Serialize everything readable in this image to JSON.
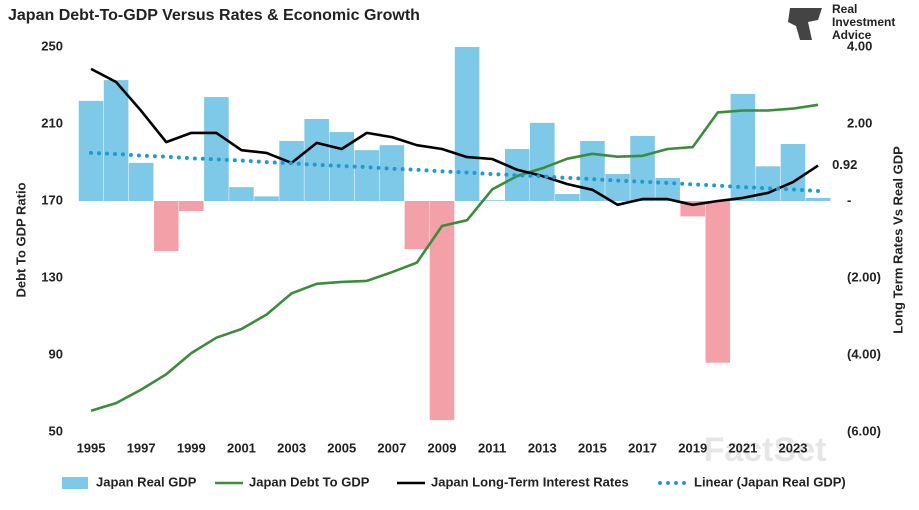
{
  "chart_data": {
    "type": "combo",
    "title": "Japan Debt-To-GDP Versus Rates & Economic Growth",
    "logo_text": [
      "Real",
      "Investment",
      "Advice"
    ],
    "watermark": "FactSet",
    "ylabel": "Debt To GDP Ratio",
    "y2label": "Long Term Rates Vs Real GDP",
    "categories": [
      "1995",
      null,
      "1997",
      null,
      "1999",
      null,
      "2001",
      null,
      "2003",
      null,
      "2005",
      null,
      "2007",
      null,
      "2009",
      null,
      "2011",
      null,
      "2013",
      null,
      "2015",
      null,
      "2017",
      null,
      "2019",
      null,
      "2021",
      null,
      "2023",
      null
    ],
    "ylim": [
      50,
      250
    ],
    "yticks": [
      50,
      90,
      130,
      170,
      210,
      250
    ],
    "y2lim": [
      -6,
      4
    ],
    "y2ticks": [
      {
        "value": 4,
        "label": "4.00"
      },
      {
        "value": 2,
        "label": "2.00"
      },
      {
        "value": 0,
        "label": "-"
      },
      {
        "value": -2,
        "label": "(2.00)"
      },
      {
        "value": -4,
        "label": "(4.00)"
      },
      {
        "value": -6,
        "label": "(6.00)"
      }
    ],
    "grid": false,
    "legend": "bottom",
    "series": [
      {
        "name": "Japan Real GDP",
        "type": "bar",
        "axis": "y2",
        "color": "#7ec8e8",
        "negative_color": "#f4a0a8",
        "values": [
          2.6,
          3.14,
          0.99,
          -1.3,
          -0.26,
          2.7,
          0.36,
          0.12,
          1.56,
          2.13,
          1.79,
          1.32,
          1.45,
          -1.25,
          -5.69,
          4.0,
          0.02,
          1.35,
          2.03,
          0.18,
          1.56,
          0.7,
          1.69,
          0.6,
          -0.4,
          -4.2,
          2.78,
          0.9,
          1.48,
          0.08
        ]
      },
      {
        "name": "Japan Debt To GDP",
        "type": "line",
        "color": "#3c8c3c",
        "values": [
          61,
          65,
          72,
          80,
          91,
          99,
          103.5,
          111,
          122,
          127,
          128,
          128.5,
          133,
          138,
          157,
          160,
          176,
          183,
          187,
          192,
          194.5,
          193,
          193.5,
          197,
          198,
          216,
          217,
          217,
          218,
          220
        ]
      },
      {
        "name": "Japan Long-Term Interest Rates",
        "type": "line",
        "axis": "y2",
        "color": "#000000",
        "values": [
          3.43,
          3.09,
          2.34,
          1.53,
          1.77,
          1.77,
          1.32,
          1.25,
          0.99,
          1.51,
          1.35,
          1.77,
          1.66,
          1.45,
          1.35,
          1.14,
          1.09,
          0.81,
          0.65,
          0.44,
          0.29,
          -0.1,
          0.05,
          0.05,
          -0.1,
          0.0,
          0.08,
          0.21,
          0.49,
          0.92
        ],
        "value_labels": [
          null,
          null,
          null,
          null,
          null,
          null,
          null,
          null,
          null,
          null,
          null,
          null,
          null,
          null,
          null,
          null,
          null,
          null,
          null,
          null,
          null,
          null,
          null,
          null,
          null,
          null,
          null,
          null,
          null,
          "0.92"
        ]
      },
      {
        "name": "Linear (Japan Real GDP)",
        "type": "line",
        "axis": "y2",
        "color": "#1e9ad6",
        "style": "dotted",
        "values": [
          1.25,
          1.22,
          1.18,
          1.15,
          1.11,
          1.08,
          1.05,
          1.01,
          0.98,
          0.94,
          0.91,
          0.88,
          0.84,
          0.81,
          0.77,
          0.74,
          0.7,
          0.67,
          0.64,
          0.6,
          0.57,
          0.53,
          0.5,
          0.47,
          0.43,
          0.4,
          0.36,
          0.33,
          0.3,
          0.26
        ]
      }
    ]
  }
}
